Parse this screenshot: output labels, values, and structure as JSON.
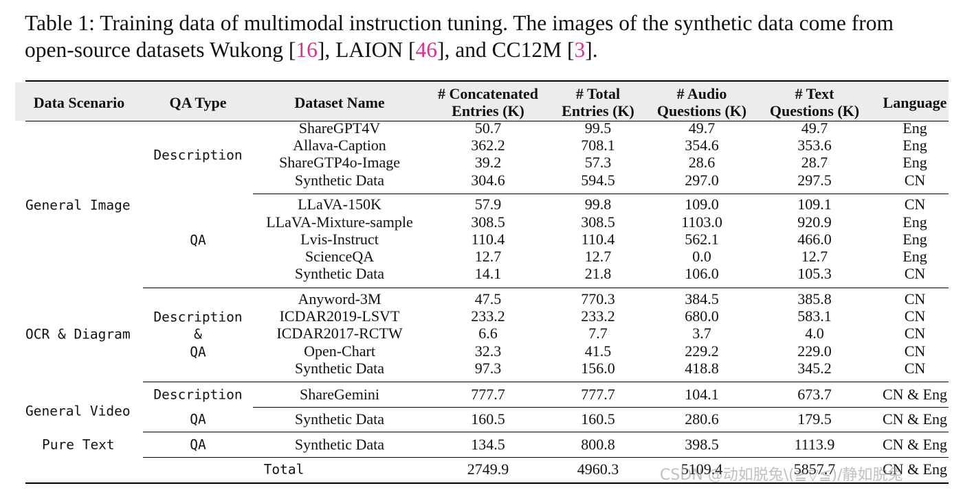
{
  "caption": {
    "line1": "Table 1: Training data of multimodal instruction tuning. The images of the synthetic data come from",
    "line2_prefix": "open-source datasets Wukong [",
    "cite1": "16",
    "line2_mid1": "], LAION [",
    "cite2": "46",
    "line2_mid2": "], and CC12M [",
    "cite3": "3",
    "line2_suffix": "]."
  },
  "header": {
    "scenario": "Data Scenario",
    "qa_type": "QA Type",
    "dataset": "Dataset Name",
    "concat_1": "# Concatenated",
    "concat_2": "Entries (K)",
    "total_1": "# Total",
    "total_2": "Entries (K)",
    "audio_1": "# Audio",
    "audio_2": "Questions (K)",
    "text_1": "# Text",
    "text_2": "Questions (K)",
    "language": "Language"
  },
  "scenarios": {
    "general_image": "General Image",
    "ocr_diagram": "OCR & Diagram",
    "general_video": "General Video",
    "pure_text": "Pure Text"
  },
  "qa_types": {
    "gi_description": "Description",
    "gi_qa": "QA",
    "ocr_line1": "Description",
    "ocr_line2": "&",
    "ocr_line3": "QA",
    "video_description": "Description",
    "video_qa": "QA",
    "text_qa": "QA"
  },
  "rows": [
    {
      "dataset": "ShareGPT4V",
      "concat": "50.7",
      "total": "99.5",
      "audio": "49.7",
      "text": "49.7",
      "lang": "Eng"
    },
    {
      "dataset": "Allava-Caption",
      "concat": "362.2",
      "total": "708.1",
      "audio": "354.6",
      "text": "353.6",
      "lang": "Eng"
    },
    {
      "dataset": "ShareGTP4o-Image",
      "concat": "39.2",
      "total": "57.3",
      "audio": "28.6",
      "text": "28.7",
      "lang": "Eng"
    },
    {
      "dataset": "Synthetic Data",
      "concat": "304.6",
      "total": "594.5",
      "audio": "297.0",
      "text": "297.5",
      "lang": "CN"
    },
    {
      "dataset": "LLaVA-150K",
      "concat": "57.9",
      "total": "99.8",
      "audio": "109.0",
      "text": "109.1",
      "lang": "CN"
    },
    {
      "dataset": "LLaVA-Mixture-sample",
      "concat": "308.5",
      "total": "308.5",
      "audio": "1103.0",
      "text": "920.9",
      "lang": "Eng"
    },
    {
      "dataset": "Lvis-Instruct",
      "concat": "110.4",
      "total": "110.4",
      "audio": "562.1",
      "text": "466.0",
      "lang": "Eng"
    },
    {
      "dataset": "ScienceQA",
      "concat": "12.7",
      "total": "12.7",
      "audio": "0.0",
      "text": "12.7",
      "lang": "Eng"
    },
    {
      "dataset": "Synthetic Data",
      "concat": "14.1",
      "total": "21.8",
      "audio": "106.0",
      "text": "105.3",
      "lang": "CN"
    },
    {
      "dataset": "Anyword-3M",
      "concat": "47.5",
      "total": "770.3",
      "audio": "384.5",
      "text": "385.8",
      "lang": "CN"
    },
    {
      "dataset": "ICDAR2019-LSVT",
      "concat": "233.2",
      "total": "233.2",
      "audio": "680.0",
      "text": "583.1",
      "lang": "CN"
    },
    {
      "dataset": "ICDAR2017-RCTW",
      "concat": "6.6",
      "total": "7.7",
      "audio": "3.7",
      "text": "4.0",
      "lang": "CN"
    },
    {
      "dataset": "Open-Chart",
      "concat": "32.3",
      "total": "41.5",
      "audio": "229.2",
      "text": "229.0",
      "lang": "CN"
    },
    {
      "dataset": "Synthetic Data",
      "concat": "97.3",
      "total": "156.0",
      "audio": "418.8",
      "text": "345.2",
      "lang": "CN"
    },
    {
      "dataset": "ShareGemini",
      "concat": "777.7",
      "total": "777.7",
      "audio": "104.1",
      "text": "673.7",
      "lang": "CN & Eng"
    },
    {
      "dataset": "Synthetic Data",
      "concat": "160.5",
      "total": "160.5",
      "audio": "280.6",
      "text": "179.5",
      "lang": "CN & Eng"
    },
    {
      "dataset": "Synthetic Data",
      "concat": "134.5",
      "total": "800.8",
      "audio": "398.5",
      "text": "1113.9",
      "lang": "CN & Eng"
    }
  ],
  "total_row": {
    "label": "Total",
    "concat": "2749.9",
    "total": "4960.3",
    "audio": "5109.4",
    "text": "5857.7",
    "lang": "CN & Eng"
  },
  "watermark": "CSDN @动如脱兔\\(≧▽≦)/静如脱兔"
}
